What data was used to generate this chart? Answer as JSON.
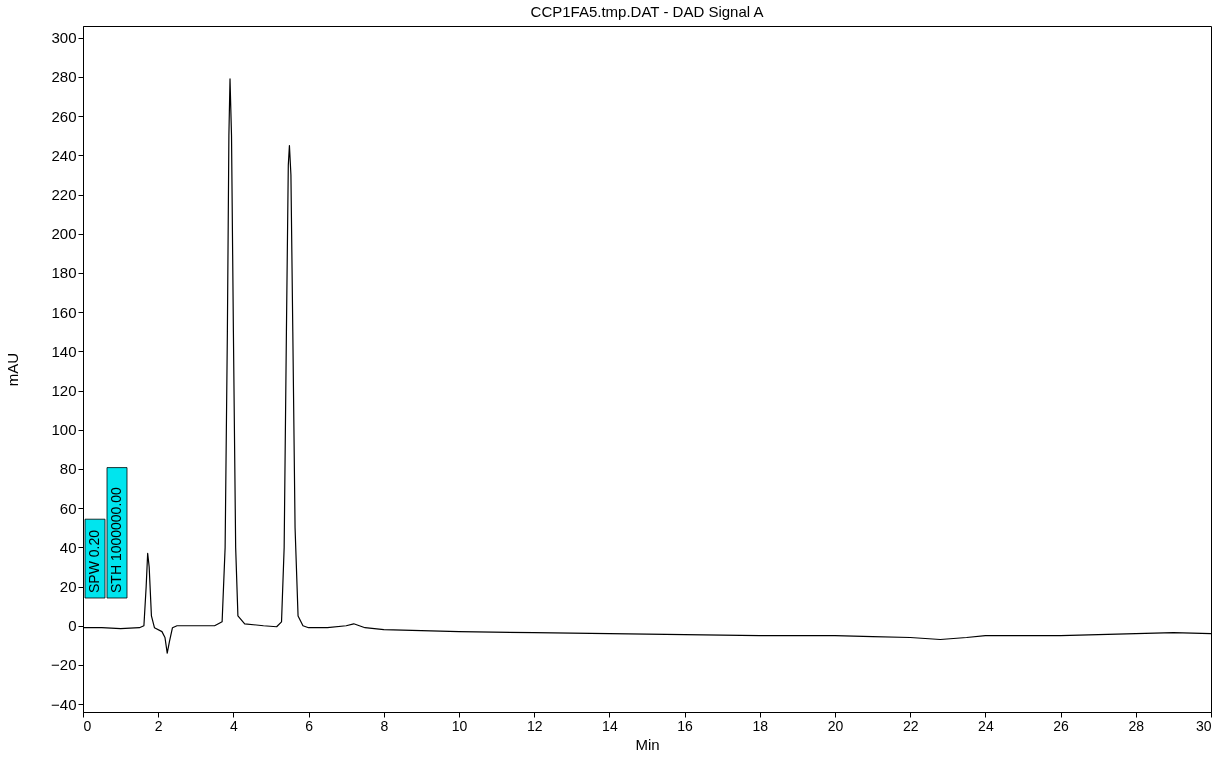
{
  "chart_data": {
    "type": "line",
    "title": "CCP1FA5.tmp.DAT - DAD Signal A",
    "xlabel": "Min",
    "ylabel": "mAU",
    "x": [
      0,
      0.5,
      1.0,
      1.5,
      1.62,
      1.68,
      1.72,
      1.76,
      1.82,
      1.9,
      2.1,
      2.18,
      2.24,
      2.3,
      2.38,
      2.5,
      3.0,
      3.5,
      3.7,
      3.78,
      3.84,
      3.88,
      3.91,
      3.95,
      4.0,
      4.06,
      4.12,
      4.3,
      4.8,
      5.15,
      5.28,
      5.35,
      5.41,
      5.46,
      5.49,
      5.53,
      5.58,
      5.64,
      5.72,
      5.85,
      6.0,
      6.5,
      7.0,
      7.2,
      7.5,
      8,
      9,
      10,
      12,
      14,
      16,
      18,
      20,
      21,
      22,
      22.8,
      23.5,
      24,
      26,
      27,
      28,
      29,
      30
    ],
    "series": [
      {
        "color": "#000000",
        "values": [
          -1,
          -1,
          -1.5,
          -1,
          0,
          20,
          37,
          30,
          5,
          -1,
          -3,
          -6,
          -14,
          -8,
          -1,
          0,
          0,
          0,
          2,
          40,
          150,
          250,
          279,
          250,
          150,
          40,
          5,
          1,
          0,
          -0.5,
          2,
          40,
          150,
          235,
          245,
          230,
          150,
          50,
          5,
          0,
          -1,
          -1,
          0,
          1,
          -1,
          -2,
          -2.5,
          -3,
          -3.5,
          -4,
          -4.5,
          -5,
          -5,
          -5.5,
          -6,
          -7,
          -6,
          -5,
          -5,
          -4.5,
          -4,
          -3.5,
          -4
        ]
      }
    ],
    "xlim": [
      0,
      30
    ],
    "xticks": [
      0,
      2,
      4,
      6,
      8,
      10,
      12,
      14,
      16,
      18,
      20,
      22,
      24,
      26,
      28,
      30
    ],
    "ylim": [
      -44,
      306
    ],
    "yticks": [
      -40,
      -20,
      0,
      20,
      40,
      60,
      80,
      100,
      120,
      140,
      160,
      180,
      200,
      220,
      240,
      260,
      280,
      300
    ],
    "grid": false,
    "marker": "none",
    "line_style": "solid",
    "annotations": [
      "SPW 0.20",
      "STH 1000000.00"
    ]
  }
}
